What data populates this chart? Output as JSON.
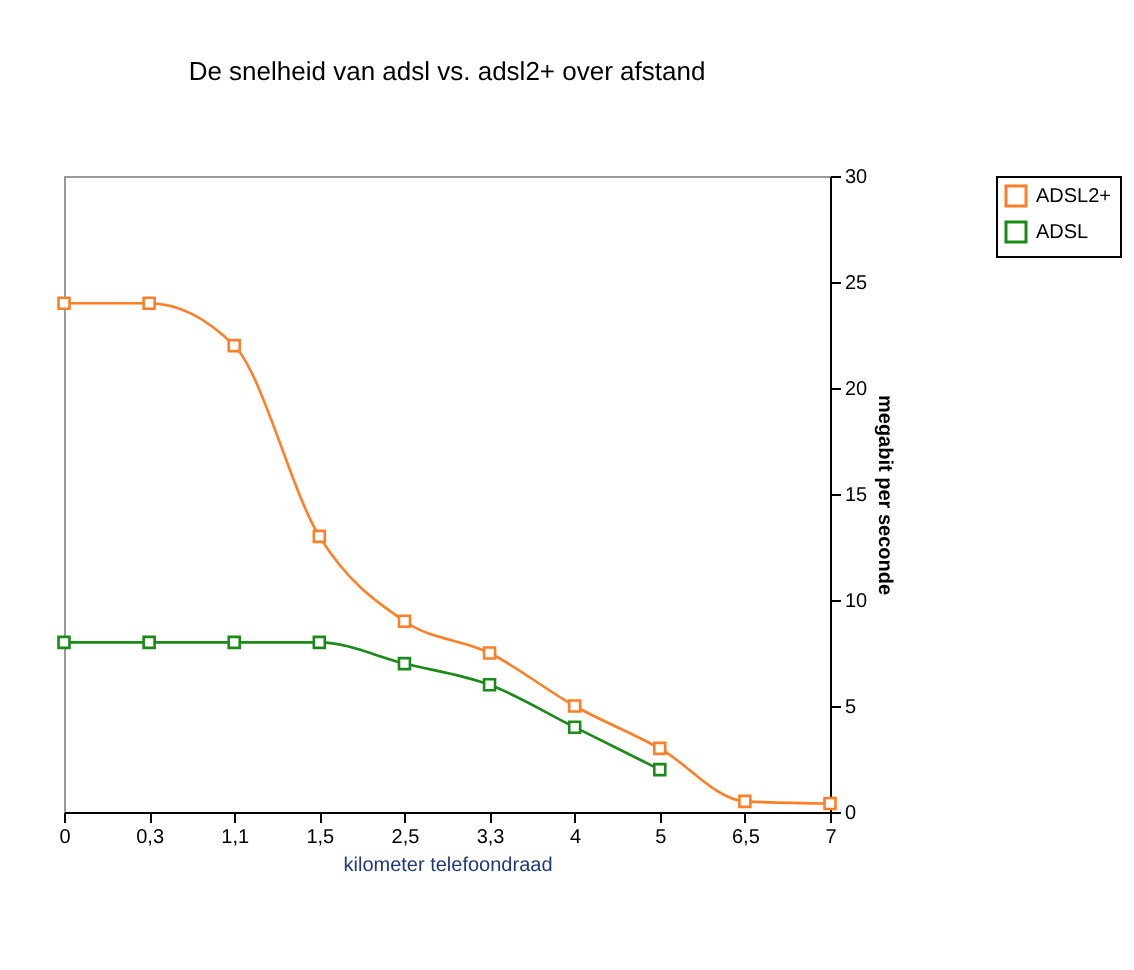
{
  "chart_data": {
    "type": "line",
    "title": "De snelheid van adsl vs. adsl2+ over afstand",
    "xlabel": "kilometer telefoondraad",
    "ylabel": "megabit per seconde",
    "categories": [
      "0",
      "0,3",
      "1,1",
      "1,5",
      "2,5",
      "3,3",
      "4",
      "5",
      "6,5",
      "7"
    ],
    "series": [
      {
        "name": "ADSL2+",
        "color": "#ff7f27",
        "values": [
          24,
          24,
          22,
          13,
          9,
          7.5,
          5,
          3,
          0.5,
          0.4
        ]
      },
      {
        "name": "ADSL",
        "color": "#1a8a1a",
        "values": [
          8,
          8,
          8,
          8,
          7,
          6,
          4,
          2,
          null,
          null
        ]
      }
    ],
    "ylim": [
      0,
      30
    ],
    "yticks": [
      0,
      5,
      10,
      15,
      20,
      25,
      30
    ],
    "grid": false,
    "legend": "right",
    "marker": "square"
  }
}
